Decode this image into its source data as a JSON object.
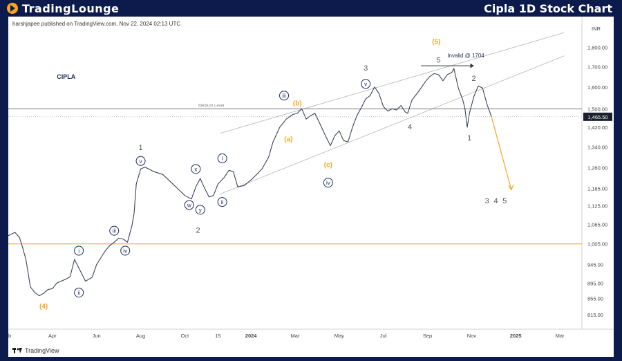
{
  "header": {
    "brand": "TradingLounge",
    "title": "Cipla 1D Stock Chart"
  },
  "publisher": "harshjapee published on TradingView.com, Nov 22, 2024 02:13 UTC",
  "footer_brand": "TradingView",
  "symbol": "CIPLA",
  "currency": "INR",
  "median_label": "Medium Level",
  "invalid_label": "Invalid @ 1704",
  "price_badge": "1,465.50",
  "colors": {
    "wave_gray": "#555555",
    "wave_orange": "#f5a623",
    "navy": "#1a2a5a",
    "background": "#0d1b4c"
  },
  "chart_data": {
    "type": "line",
    "title": "",
    "xlabel": "",
    "ylabel": "INR",
    "scale": "log",
    "ylim": [
      800,
      1900
    ],
    "yticks": [
      {
        "v": 815,
        "l": "815.00"
      },
      {
        "v": 855,
        "l": "855.00"
      },
      {
        "v": 895,
        "l": "895.00"
      },
      {
        "v": 945,
        "l": "945.00"
      },
      {
        "v": 1005,
        "l": "1,005.00"
      },
      {
        "v": 1065,
        "l": "1,065.00"
      },
      {
        "v": 1125,
        "l": "1,125.00"
      },
      {
        "v": 1185,
        "l": "1,185.00"
      },
      {
        "v": 1260,
        "l": "1,260.00"
      },
      {
        "v": 1340,
        "l": "1,340.00"
      },
      {
        "v": 1420,
        "l": "1,420.00"
      },
      {
        "v": 1500,
        "l": "1,500.00"
      },
      {
        "v": 1600,
        "l": "1,600.00"
      },
      {
        "v": 1700,
        "l": "1,700.00"
      },
      {
        "v": 1800,
        "l": "1,800.00"
      }
    ],
    "xticks": [
      {
        "t": 0,
        "l": "eb"
      },
      {
        "t": 1,
        "l": "Apr"
      },
      {
        "t": 2,
        "l": "Jun"
      },
      {
        "t": 3,
        "l": "Aug"
      },
      {
        "t": 4,
        "l": "Oct"
      },
      {
        "t": 4.75,
        "l": "15"
      },
      {
        "t": 5.5,
        "l": "2024"
      },
      {
        "t": 6.5,
        "l": "Mar"
      },
      {
        "t": 7.5,
        "l": "May"
      },
      {
        "t": 8.5,
        "l": "Jul"
      },
      {
        "t": 9.5,
        "l": "Sep"
      },
      {
        "t": 10.5,
        "l": "Nov"
      },
      {
        "t": 11.5,
        "l": "2025"
      },
      {
        "t": 12.5,
        "l": "Mar"
      }
    ],
    "series": [
      {
        "values": [
          [
            0,
            1030
          ],
          [
            0.15,
            1040
          ],
          [
            0.25,
            1025
          ],
          [
            0.3,
            1005
          ],
          [
            0.4,
            960
          ],
          [
            0.5,
            885
          ],
          [
            0.6,
            870
          ],
          [
            0.7,
            862
          ],
          [
            0.8,
            868
          ],
          [
            0.9,
            878
          ],
          [
            1.0,
            880
          ],
          [
            1.1,
            895
          ],
          [
            1.2,
            900
          ],
          [
            1.3,
            905
          ],
          [
            1.4,
            912
          ],
          [
            1.5,
            960
          ],
          [
            1.6,
            935
          ],
          [
            1.75,
            900
          ],
          [
            1.9,
            910
          ],
          [
            2.0,
            945
          ],
          [
            2.1,
            965
          ],
          [
            2.2,
            985
          ],
          [
            2.3,
            1000
          ],
          [
            2.4,
            1010
          ],
          [
            2.5,
            1022
          ],
          [
            2.6,
            1020
          ],
          [
            2.7,
            1010
          ],
          [
            2.8,
            1060
          ],
          [
            2.85,
            1100
          ],
          [
            2.9,
            1200
          ],
          [
            3.0,
            1255
          ],
          [
            3.1,
            1262
          ],
          [
            3.3,
            1245
          ],
          [
            3.5,
            1235
          ],
          [
            3.7,
            1205
          ],
          [
            3.9,
            1175
          ],
          [
            4.0,
            1160
          ],
          [
            4.15,
            1148
          ],
          [
            4.25,
            1190
          ],
          [
            4.35,
            1220
          ],
          [
            4.45,
            1185
          ],
          [
            4.55,
            1155
          ],
          [
            4.65,
            1160
          ],
          [
            4.75,
            1200
          ],
          [
            4.9,
            1225
          ],
          [
            5.0,
            1250
          ],
          [
            5.1,
            1245
          ],
          [
            5.2,
            1190
          ],
          [
            5.35,
            1195
          ],
          [
            5.5,
            1215
          ],
          [
            5.6,
            1230
          ],
          [
            5.75,
            1255
          ],
          [
            5.9,
            1300
          ],
          [
            6.0,
            1360
          ],
          [
            6.15,
            1420
          ],
          [
            6.3,
            1455
          ],
          [
            6.45,
            1475
          ],
          [
            6.55,
            1480
          ],
          [
            6.65,
            1500
          ],
          [
            6.75,
            1455
          ],
          [
            6.85,
            1470
          ],
          [
            6.95,
            1480
          ],
          [
            7.05,
            1440
          ],
          [
            7.2,
            1380
          ],
          [
            7.3,
            1345
          ],
          [
            7.4,
            1385
          ],
          [
            7.5,
            1405
          ],
          [
            7.6,
            1365
          ],
          [
            7.7,
            1360
          ],
          [
            7.8,
            1420
          ],
          [
            7.9,
            1470
          ],
          [
            8.0,
            1505
          ],
          [
            8.1,
            1545
          ],
          [
            8.2,
            1560
          ],
          [
            8.3,
            1600
          ],
          [
            8.4,
            1570
          ],
          [
            8.5,
            1510
          ],
          [
            8.6,
            1490
          ],
          [
            8.7,
            1500
          ],
          [
            8.8,
            1495
          ],
          [
            8.9,
            1515
          ],
          [
            9.0,
            1485
          ],
          [
            9.05,
            1480
          ],
          [
            9.15,
            1540
          ],
          [
            9.3,
            1580
          ],
          [
            9.45,
            1625
          ],
          [
            9.55,
            1650
          ],
          [
            9.65,
            1665
          ],
          [
            9.75,
            1660
          ],
          [
            9.85,
            1630
          ],
          [
            9.95,
            1660
          ],
          [
            10.05,
            1670
          ],
          [
            10.1,
            1690
          ],
          [
            10.2,
            1595
          ],
          [
            10.3,
            1540
          ],
          [
            10.35,
            1500
          ],
          [
            10.4,
            1420
          ],
          [
            10.45,
            1480
          ],
          [
            10.55,
            1555
          ],
          [
            10.65,
            1605
          ],
          [
            10.75,
            1595
          ],
          [
            10.85,
            1520
          ],
          [
            10.95,
            1465
          ]
        ]
      }
    ],
    "median_level": 1500,
    "support_level": 1005,
    "channel": {
      "upper": [
        [
          4.8,
          1395
        ],
        [
          12.6,
          1880
        ]
      ],
      "lower": [
        [
          4.8,
          1165
        ],
        [
          12.6,
          1755
        ]
      ]
    },
    "projection": [
      [
        10.95,
        1465
      ],
      [
        11.4,
        1180
      ]
    ],
    "invalid_arrow": [
      [
        9.35,
        1704
      ],
      [
        10.55,
        1704
      ]
    ],
    "labels": [
      {
        "text": "(4)",
        "t": 0.8,
        "v": 835,
        "style": "orange"
      },
      {
        "text": "i",
        "t": 1.6,
        "v": 985,
        "style": "circle"
      },
      {
        "text": "ii",
        "t": 1.6,
        "v": 870,
        "style": "circle"
      },
      {
        "text": "iii",
        "t": 2.4,
        "v": 1045,
        "style": "circle"
      },
      {
        "text": "iv",
        "t": 2.65,
        "v": 985,
        "style": "circle"
      },
      {
        "text": "1",
        "t": 3.0,
        "v": 1335,
        "style": "gray"
      },
      {
        "text": "v",
        "t": 3.0,
        "v": 1285,
        "style": "circle"
      },
      {
        "text": "w",
        "t": 4.1,
        "v": 1128,
        "style": "circle"
      },
      {
        "text": "x",
        "t": 4.25,
        "v": 1255,
        "style": "circle"
      },
      {
        "text": "y",
        "t": 4.35,
        "v": 1112,
        "style": "circle"
      },
      {
        "text": "2",
        "t": 4.3,
        "v": 1045,
        "style": "gray"
      },
      {
        "text": "i",
        "t": 4.85,
        "v": 1295,
        "style": "circle"
      },
      {
        "text": "ii",
        "t": 4.85,
        "v": 1138,
        "style": "circle"
      },
      {
        "text": "iii",
        "t": 6.25,
        "v": 1560,
        "style": "circle"
      },
      {
        "text": "(b)",
        "t": 6.55,
        "v": 1525,
        "style": "orange"
      },
      {
        "text": "(a)",
        "t": 6.35,
        "v": 1370,
        "style": "orange"
      },
      {
        "text": "(c)",
        "t": 7.25,
        "v": 1270,
        "style": "orange"
      },
      {
        "text": "iv",
        "t": 7.25,
        "v": 1205,
        "style": "circle"
      },
      {
        "text": "3",
        "t": 8.1,
        "v": 1690,
        "style": "gray"
      },
      {
        "text": "v",
        "t": 8.1,
        "v": 1615,
        "style": "circle"
      },
      {
        "text": "4",
        "t": 9.1,
        "v": 1420,
        "style": "gray"
      },
      {
        "text": "(5)",
        "t": 9.7,
        "v": 1830,
        "style": "orange"
      },
      {
        "text": "5",
        "t": 9.75,
        "v": 1730,
        "style": "gray"
      },
      {
        "text": "2",
        "t": 10.55,
        "v": 1640,
        "style": "gray"
      },
      {
        "text": "1",
        "t": 10.45,
        "v": 1375,
        "style": "gray"
      },
      {
        "text": "3",
        "t": 10.85,
        "v": 1140,
        "style": "gray"
      },
      {
        "text": "4",
        "t": 11.05,
        "v": 1140,
        "style": "gray"
      },
      {
        "text": "5",
        "t": 11.25,
        "v": 1140,
        "style": "gray"
      }
    ]
  }
}
